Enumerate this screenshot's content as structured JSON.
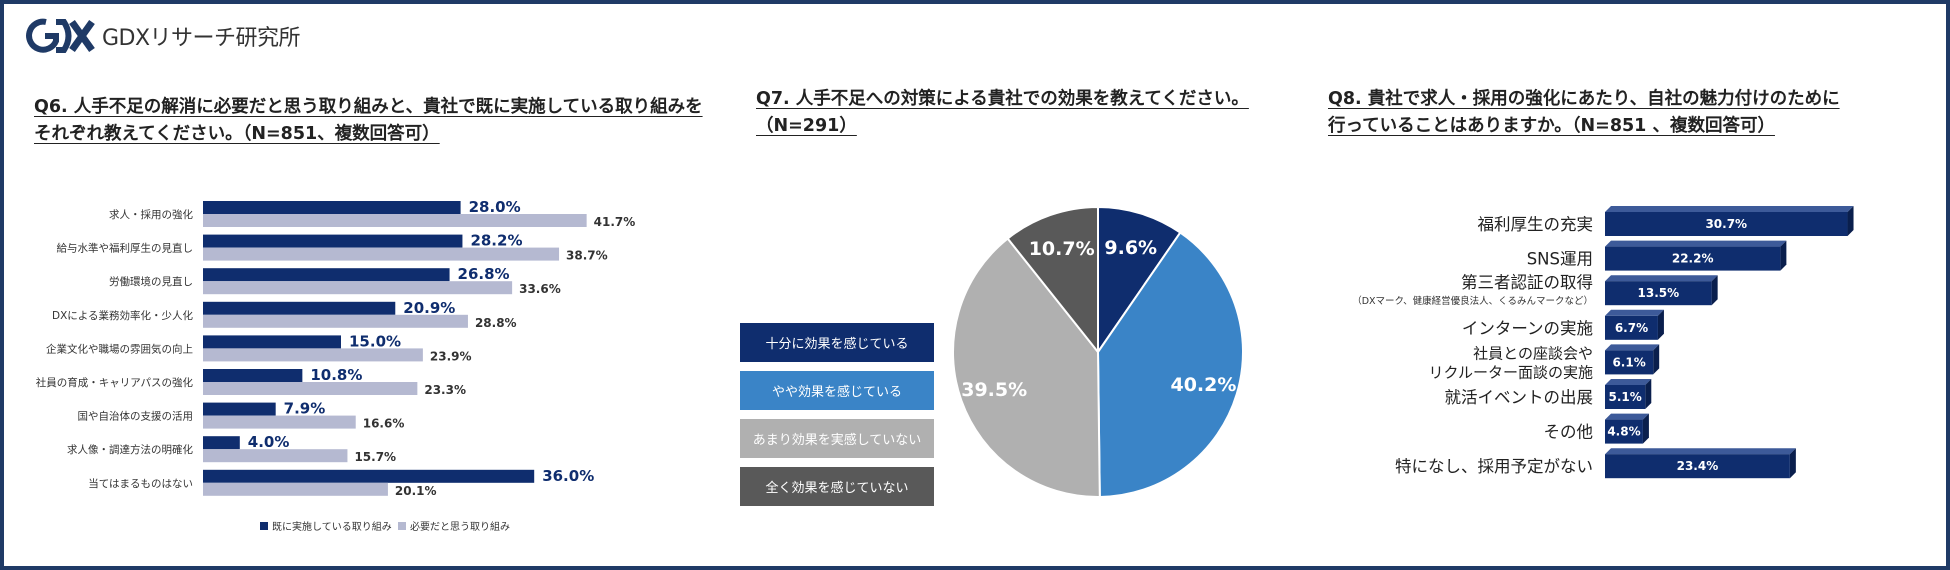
{
  "brand": {
    "logo_name": "gdx-logo",
    "name": "GDXリサーチ研究所"
  },
  "colors": {
    "navy": "#0f2d6e",
    "lavender": "#b5b9d1",
    "blue": "#3a84c7",
    "gray": "#b0b0b0",
    "dark": "#595959",
    "frame": "#1f3a66"
  },
  "chart_data": [
    {
      "id": "q6",
      "type": "bar",
      "orientation": "horizontal",
      "title_lines": [
        "Q6. 人手不足の解消に必要だと思う取り組みと、貴社で既に実施している取り組みを",
        "それぞれ教えてください。（N=851、複数回答可）"
      ],
      "categories": [
        "求人・採用の強化",
        "給与水準や福利厚生の見直し",
        "労働環境の見直し",
        "DXによる業務効率化・少人化",
        "企業文化や職場の雰囲気の向上",
        "社員の育成・キャリアパスの強化",
        "国や自治体の支援の活用",
        "求人像・調達方法の明確化",
        "当てはまるものはない"
      ],
      "series": [
        {
          "name": "既に実施している取り組み",
          "color": "#0f2d6e",
          "values": [
            28.0,
            28.2,
            26.8,
            20.9,
            15.0,
            10.8,
            7.9,
            4.0,
            36.0
          ],
          "labels": [
            "28.0%",
            "28.2%",
            "26.8%",
            "20.9%",
            "15.0%",
            "10.8%",
            "7.9%",
            "4.0%",
            "36.0%"
          ]
        },
        {
          "name": "必要だと思う取り組み",
          "color": "#b5b9d1",
          "values": [
            41.7,
            38.7,
            33.6,
            28.8,
            23.9,
            23.3,
            16.6,
            15.7,
            20.1
          ],
          "labels": [
            "41.7%",
            "38.7%",
            "33.6%",
            "28.8%",
            "23.9%",
            "23.3%",
            "16.6%",
            "15.7%",
            "20.1%"
          ]
        }
      ],
      "legend_position": "bottom"
    },
    {
      "id": "q7",
      "type": "pie",
      "title_lines": [
        "Q7. 人手不足への対策による貴社での効果を教えてください。",
        "（N=291）"
      ],
      "slices": [
        {
          "label": "十分に効果を感じている",
          "value": 9.6,
          "text": "9.6%",
          "color": "#0f2d6e"
        },
        {
          "label": "やや効果を感じている",
          "value": 40.2,
          "text": "40.2%",
          "color": "#3a84c7"
        },
        {
          "label": "あまり効果を実感していない",
          "value": 39.5,
          "text": "39.5%",
          "color": "#b0b0b0"
        },
        {
          "label": "全く効果を感じていない",
          "value": 10.7,
          "text": "10.7%",
          "color": "#595959"
        }
      ],
      "legend_position": "left"
    },
    {
      "id": "q8",
      "type": "bar",
      "orientation": "horizontal",
      "style": "3d",
      "title_lines": [
        "Q8. 貴社で求人・採用の強化にあたり、自社の魅力付けのために",
        "行っていることはありますか。（N=851 、複数回答可）"
      ],
      "categories": [
        {
          "lines": [
            "福利厚生の充実"
          ],
          "sub": ""
        },
        {
          "lines": [
            "SNS運用"
          ],
          "sub": ""
        },
        {
          "lines": [
            "第三者認証の取得"
          ],
          "sub": "（DXマーク、健康経営優良法人、くるみんマークなど）"
        },
        {
          "lines": [
            "インターンの実施"
          ],
          "sub": ""
        },
        {
          "lines": [
            "社員との座談会や",
            "リクルーター面談の実施"
          ],
          "sub": ""
        },
        {
          "lines": [
            "就活イベントの出展"
          ],
          "sub": ""
        },
        {
          "lines": [
            "その他"
          ],
          "sub": ""
        },
        {
          "lines": [
            "特になし、採用予定がない"
          ],
          "sub": ""
        }
      ],
      "values": [
        30.7,
        22.2,
        13.5,
        6.7,
        6.1,
        5.1,
        4.8,
        23.4
      ],
      "labels": [
        "30.7%",
        "22.2%",
        "13.5%",
        "6.7%",
        "6.1%",
        "5.1%",
        "4.8%",
        "23.4%"
      ],
      "color": "#0f2d6e"
    }
  ]
}
